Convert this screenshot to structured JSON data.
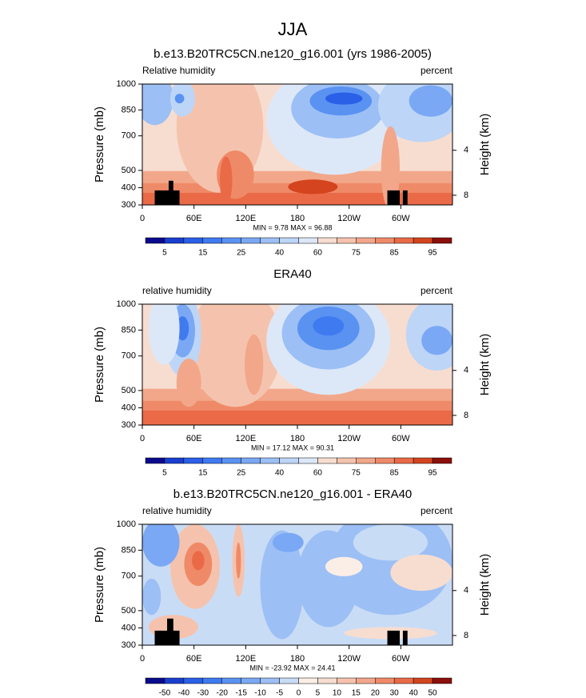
{
  "title": "JJA",
  "chart_data": [
    {
      "type": "contour",
      "title": "b.e13.B20TRC5CN.ne120_g16.001 (yrs 1986-2005)",
      "left_label": "Relative humidity",
      "right_label": "percent",
      "y_label": "Pressure (mb)",
      "y2_label": "Height (km)",
      "ylim": [
        1000,
        300
      ],
      "yticks": [
        300,
        400,
        500,
        700,
        850,
        1000
      ],
      "y2ticks": [
        4,
        8
      ],
      "xlim": [
        0,
        360
      ],
      "xticks": [
        0,
        {
          "value": 60,
          "label": "60E"
        },
        {
          "value": 120,
          "label": "120E"
        },
        180,
        {
          "value": 240,
          "label": "120W"
        },
        {
          "value": 300,
          "label": "60W"
        }
      ],
      "stats": "MIN =  9.78  MAX = 96.88",
      "colorbar": {
        "labels": [
          5,
          15,
          25,
          40,
          60,
          75,
          85,
          95
        ],
        "colors": [
          "#0a0a8c",
          "#1a3fcf",
          "#2a5fe8",
          "#3f7af0",
          "#5a92f2",
          "#7aa8f4",
          "#9cbff5",
          "#bdd5f7",
          "#dce8f8",
          "#f7ddd0",
          "#f5c3ad",
          "#f2a78a",
          "#ef8a68",
          "#ea6a47",
          "#d4441f",
          "#8b0f0a"
        ]
      }
    },
    {
      "type": "contour",
      "title": "ERA40",
      "left_label": "relative humidity",
      "right_label": "percent",
      "y_label": "Pressure (mb)",
      "y2_label": "Height (km)",
      "ylim": [
        1000,
        300
      ],
      "yticks": [
        300,
        400,
        500,
        700,
        850,
        1000
      ],
      "y2ticks": [
        4,
        8
      ],
      "xlim": [
        0,
        360
      ],
      "xticks": [
        0,
        {
          "value": 60,
          "label": "60E"
        },
        {
          "value": 120,
          "label": "120E"
        },
        180,
        {
          "value": 240,
          "label": "120W"
        },
        {
          "value": 300,
          "label": "60W"
        }
      ],
      "stats": "MIN = 17.12  MAX = 90.31",
      "colorbar": {
        "labels": [
          5,
          15,
          25,
          40,
          60,
          75,
          85,
          95
        ],
        "colors": [
          "#0a0a8c",
          "#1a3fcf",
          "#2a5fe8",
          "#3f7af0",
          "#5a92f2",
          "#7aa8f4",
          "#9cbff5",
          "#bdd5f7",
          "#dce8f8",
          "#f7ddd0",
          "#f5c3ad",
          "#f2a78a",
          "#ef8a68",
          "#ea6a47",
          "#d4441f",
          "#8b0f0a"
        ]
      }
    },
    {
      "type": "contour",
      "title": "b.e13.B20TRC5CN.ne120_g16.001 - ERA40",
      "left_label": "relative humidity",
      "right_label": "percent",
      "y_label": "Pressure (mb)",
      "y2_label": "Height (km)",
      "ylim": [
        1000,
        300
      ],
      "yticks": [
        300,
        400,
        500,
        700,
        850,
        1000
      ],
      "y2ticks": [
        4,
        8
      ],
      "xlim": [
        0,
        360
      ],
      "xticks": [
        0,
        {
          "value": 60,
          "label": "60E"
        },
        {
          "value": 120,
          "label": "120E"
        },
        180,
        {
          "value": 240,
          "label": "120W"
        },
        {
          "value": 300,
          "label": "60W"
        }
      ],
      "stats": "MIN = -23.92  MAX = 24.41",
      "colorbar": {
        "labels": [
          -50,
          -40,
          -30,
          -20,
          -15,
          -10,
          -5,
          0,
          5,
          10,
          15,
          20,
          30,
          40,
          50
        ],
        "colors": [
          "#0a0a8c",
          "#1a3fcf",
          "#2a5fe8",
          "#3f7af0",
          "#5a92f2",
          "#7aa8f4",
          "#9cbff5",
          "#c9dcf6",
          "#fbeee6",
          "#f7ddd0",
          "#f5c3ad",
          "#f2a78a",
          "#ef8a68",
          "#ea6a47",
          "#d4441f",
          "#8b0f0a"
        ]
      }
    }
  ]
}
